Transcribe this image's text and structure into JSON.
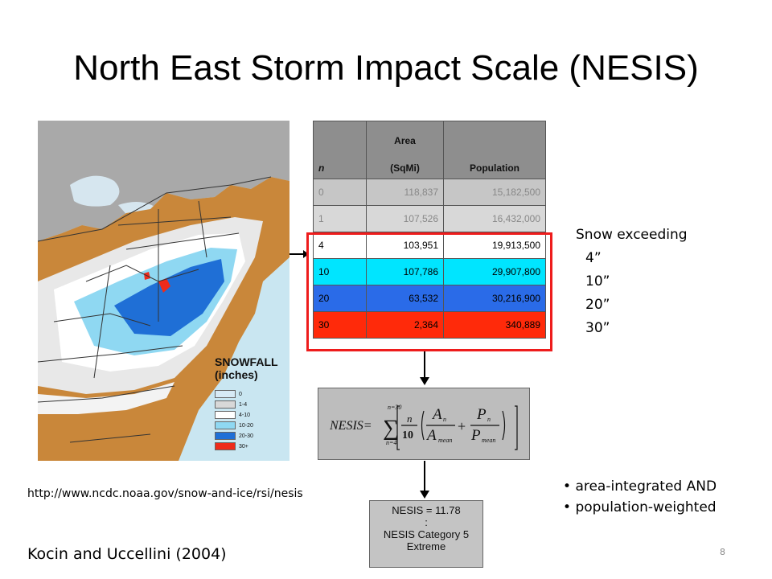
{
  "slide": {
    "title": "North East Storm Impact Scale (NESIS)",
    "url": "http://www.ncdc.noaa.gov/snow-and-ice/rsi/nesis",
    "citation": "Kocin and Uccellini (2004)",
    "page_number": "8"
  },
  "map": {
    "legend_title_line1": "SNOWFALL",
    "legend_title_line2": "(inches)",
    "legend": [
      {
        "label": "0",
        "color": "#d7eaf5"
      },
      {
        "label": "1-4",
        "color": "#d8d8d8"
      },
      {
        "label": "4-10",
        "color": "#ffffff"
      },
      {
        "label": "10-20",
        "color": "#8fd8f2"
      },
      {
        "label": "20-30",
        "color": "#1f6fd6"
      },
      {
        "label": "30+",
        "color": "#ee2b1b"
      }
    ]
  },
  "table": {
    "headers": {
      "n": "n",
      "area_top": "Area",
      "area_bottom": "(SqMi)",
      "population": "Population"
    },
    "rows": [
      {
        "n": "0",
        "area": "118,837",
        "population": "15,182,500",
        "color": "#c6c6c6"
      },
      {
        "n": "1",
        "area": "107,526",
        "population": "16,432,000",
        "color": "#d8d8d8"
      },
      {
        "n": "4",
        "area": "103,951",
        "population": "19,913,500",
        "color": "#ffffff"
      },
      {
        "n": "10",
        "area": "107,786",
        "population": "29,907,800",
        "color": "#00e5ff"
      },
      {
        "n": "20",
        "area": "63,532",
        "population": "30,216,900",
        "color": "#2a6be8"
      },
      {
        "n": "30",
        "area": "2,364",
        "population": "340,889",
        "color": "#ff2a0a"
      }
    ]
  },
  "snow_exceeding": {
    "heading": "Snow exceeding",
    "values": [
      "4”",
      "10”",
      "20”",
      "30”"
    ]
  },
  "formula": {
    "lhs": "NESIS=",
    "sum_top": "n=30",
    "sum_bottom": "n=4",
    "n": "n",
    "ten": "10",
    "A_n": "A",
    "A_n_sub": "n",
    "A_mean": "A",
    "A_mean_sub": "mean",
    "plus": "+",
    "P_n": "P",
    "P_n_sub": "n",
    "P_mean": "P",
    "P_mean_sub": "mean"
  },
  "result": {
    "line1": "NESIS = 11.78",
    "line2": ":",
    "line3": "NESIS Category 5",
    "line4": "Extreme"
  },
  "bullets": [
    "area-integrated AND",
    "population-weighted"
  ]
}
